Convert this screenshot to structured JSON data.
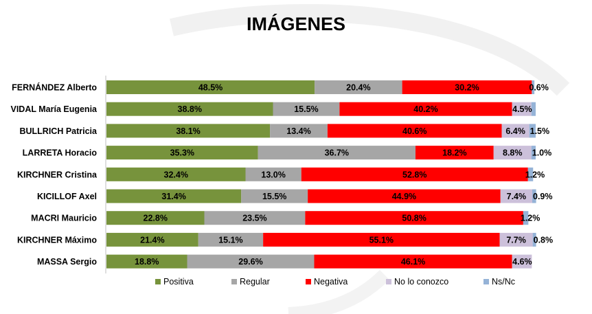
{
  "chart_data": {
    "type": "bar",
    "orientation": "horizontal",
    "stacked": true,
    "title": "IMÁGENES",
    "categories": [
      "FERNÁNDEZ Alberto",
      "VIDAL María Eugenia",
      "BULLRICH Patricia",
      "LARRETA Horacio",
      "KIRCHNER Cristina",
      "KICILLOF Axel",
      "MACRI Mauricio",
      "KIRCHNER Máximo",
      "MASSA Sergio"
    ],
    "series": [
      {
        "name": "Positiva",
        "color": "#77933c",
        "values": [
          48.5,
          38.8,
          38.1,
          35.3,
          32.4,
          31.4,
          22.8,
          21.4,
          18.8
        ],
        "labels": [
          "48.5%",
          "38.8%",
          "38.1%",
          "35.3%",
          "32.4%",
          "31.4%",
          "22.8%",
          "21.4%",
          "18.8%"
        ]
      },
      {
        "name": "Regular",
        "color": "#a6a6a6",
        "values": [
          20.4,
          15.5,
          13.4,
          36.7,
          13.0,
          15.5,
          23.5,
          15.1,
          29.6
        ],
        "labels": [
          "20.4%",
          "15.5%",
          "13.4%",
          "36.7%",
          "13.0%",
          "15.5%",
          "23.5%",
          "15.1%",
          "29.6%"
        ]
      },
      {
        "name": "Negativa",
        "color": "#ff0000",
        "values": [
          30.2,
          40.2,
          40.6,
          18.2,
          52.8,
          44.9,
          50.8,
          55.1,
          46.1
        ],
        "labels": [
          "30.2%",
          "40.2%",
          "40.6%",
          "18.2%",
          "52.8%",
          "44.9%",
          "50.8%",
          "55.1%",
          "46.1%"
        ]
      },
      {
        "name": "No lo conozco",
        "color": "#ccc0da",
        "values": [
          0.0,
          4.5,
          6.4,
          8.8,
          0.0,
          7.4,
          0.0,
          7.7,
          4.6
        ],
        "labels": [
          "",
          "4.5%",
          "6.4%",
          "8.8%",
          "",
          "7.4%",
          "",
          "7.7%",
          "4.6%"
        ]
      },
      {
        "name": "Ns/Nc",
        "color": "#95b3d7",
        "values": [
          0.6,
          1.0,
          1.5,
          1.0,
          1.2,
          0.9,
          1.2,
          0.8,
          0.0
        ],
        "labels": [
          "0.6%",
          "",
          "1.5%",
          "1.0%",
          "1.2%",
          "0.9%",
          "1.2%",
          "0.8%",
          ""
        ]
      }
    ],
    "xlim": [
      0,
      100
    ],
    "grid": false,
    "legend_position": "bottom"
  }
}
